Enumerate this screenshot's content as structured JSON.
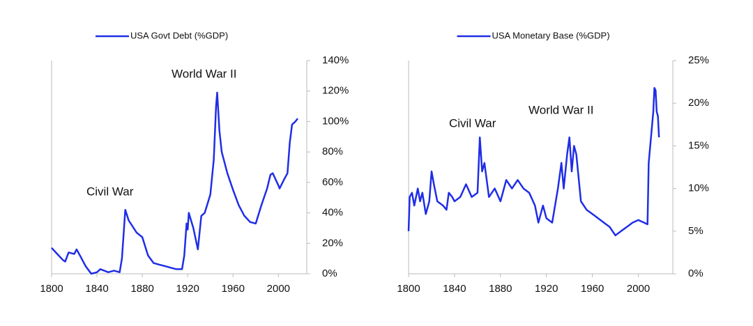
{
  "chart_data": [
    {
      "type": "line",
      "xlim": [
        1800,
        2025
      ],
      "xticks": [
        1800,
        1840,
        1880,
        1920,
        1960,
        2000
      ],
      "ylim": [
        0,
        140
      ],
      "yticks": [
        {
          "value": 0,
          "label": "0%"
        },
        {
          "value": 20,
          "label": "20%"
        },
        {
          "value": 40,
          "label": "40%"
        },
        {
          "value": 60,
          "label": "60%"
        },
        {
          "value": 80,
          "label": "80%"
        },
        {
          "value": 100,
          "label": "100%"
        },
        {
          "value": 120,
          "label": "120%"
        },
        {
          "value": 140,
          "label": "140%"
        }
      ],
      "annotations": [
        "World War II",
        "Civil War"
      ],
      "x": [
        1800,
        1805,
        1810,
        1812,
        1815,
        1820,
        1822,
        1825,
        1830,
        1835,
        1840,
        1843,
        1850,
        1855,
        1860,
        1862,
        1865,
        1868,
        1875,
        1880,
        1885,
        1890,
        1895,
        1900,
        1905,
        1910,
        1915,
        1917,
        1919,
        1920,
        1921,
        1925,
        1929,
        1932,
        1935,
        1940,
        1943,
        1945,
        1946,
        1948,
        1950,
        1955,
        1960,
        1965,
        1970,
        1975,
        1980,
        1985,
        1990,
        1993,
        1995,
        2000,
        2001,
        2005,
        2008,
        2010,
        2012,
        2015,
        2017
      ],
      "series": [
        {
          "name": "USA Govt Debt (%GDP)",
          "color": "#1f2de8",
          "values": [
            17,
            13,
            9,
            8,
            14,
            13,
            16,
            12,
            5,
            0,
            1,
            3,
            1,
            2,
            1,
            10,
            42,
            35,
            27,
            24,
            12,
            7,
            6,
            5,
            4,
            3,
            3,
            12,
            33,
            29,
            40,
            30,
            16,
            38,
            40,
            52,
            75,
            110,
            119,
            94,
            80,
            66,
            55,
            45,
            38,
            34,
            33,
            45,
            56,
            65,
            66,
            58,
            56,
            62,
            66,
            86,
            98,
            100,
            102
          ]
        }
      ]
    },
    {
      "type": "line",
      "xlim": [
        1800,
        2030
      ],
      "xticks": [
        1800,
        1840,
        1880,
        1920,
        1960,
        2000
      ],
      "ylim": [
        0,
        25
      ],
      "yticks": [
        {
          "value": 0,
          "label": "0%"
        },
        {
          "value": 5,
          "label": "5%"
        },
        {
          "value": 10,
          "label": "10%"
        },
        {
          "value": 15,
          "label": "15%"
        },
        {
          "value": 20,
          "label": "20%"
        },
        {
          "value": 25,
          "label": "25%"
        }
      ],
      "annotations": [
        "World War II",
        "Civil War"
      ],
      "x": [
        1800,
        1801,
        1803,
        1805,
        1808,
        1810,
        1812,
        1815,
        1818,
        1820,
        1822,
        1825,
        1830,
        1833,
        1835,
        1838,
        1840,
        1845,
        1850,
        1855,
        1860,
        1862,
        1864,
        1866,
        1870,
        1875,
        1880,
        1885,
        1890,
        1895,
        1900,
        1905,
        1910,
        1913,
        1917,
        1920,
        1925,
        1930,
        1933,
        1935,
        1938,
        1940,
        1942,
        1944,
        1946,
        1950,
        1955,
        1960,
        1965,
        1970,
        1975,
        1980,
        1985,
        1990,
        1995,
        2000,
        2005,
        2008,
        2009,
        2011,
        2013,
        2014,
        2015,
        2016,
        2017,
        2018
      ],
      "series": [
        {
          "name": "USA Monetary Base (%GDP)",
          "color": "#1f2de8",
          "values": [
            5,
            9,
            9.5,
            8,
            10,
            8.5,
            9.5,
            7,
            8.5,
            12,
            10.5,
            8.5,
            8,
            7.5,
            9.5,
            9,
            8.5,
            9,
            10.5,
            9,
            9.5,
            16,
            12,
            13,
            9,
            10,
            8.5,
            11,
            10,
            11,
            10,
            9.5,
            8,
            6,
            8,
            6.5,
            6,
            10,
            13,
            10,
            14,
            16,
            12,
            15,
            14,
            8.5,
            7.5,
            7,
            6.5,
            6,
            5.5,
            4.5,
            5,
            5.5,
            6,
            6.3,
            6,
            5.8,
            13,
            16,
            19,
            21.8,
            21.5,
            19,
            18.5,
            16
          ]
        }
      ]
    }
  ]
}
